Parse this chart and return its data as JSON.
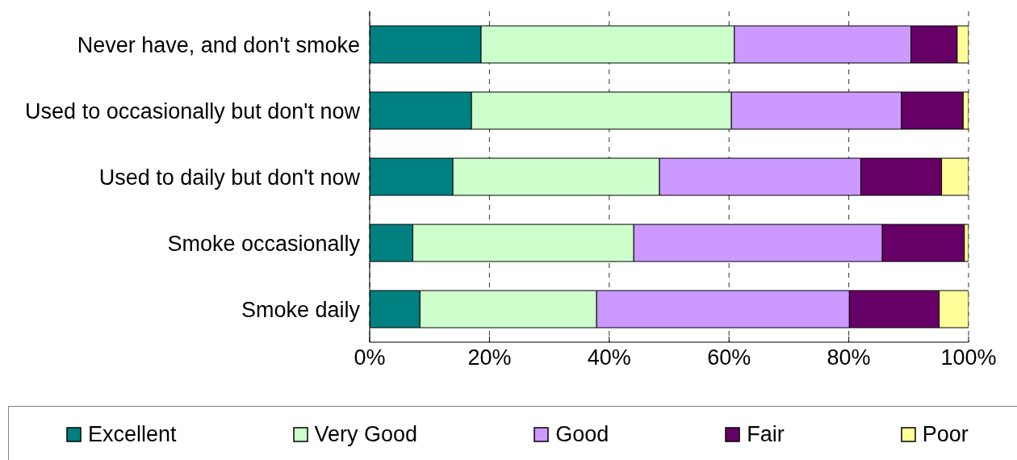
{
  "chart_data": {
    "type": "bar",
    "orientation": "horizontal",
    "stacked": true,
    "categories": [
      "Never have, and don't smoke",
      "Used to occasionally but don't now",
      "Used to daily but don't now",
      "Smoke occasionally",
      "Smoke daily"
    ],
    "series": [
      {
        "name": "Excellent",
        "color": "#008080",
        "values": [
          18.6,
          17.0,
          13.9,
          7.2,
          8.4
        ]
      },
      {
        "name": "Very Good",
        "color": "#ccffcc",
        "values": [
          42.3,
          43.4,
          34.5,
          36.9,
          29.5
        ]
      },
      {
        "name": "Good",
        "color": "#cc99ff",
        "values": [
          29.5,
          28.4,
          33.6,
          41.5,
          42.2
        ]
      },
      {
        "name": "Fair",
        "color": "#660066",
        "values": [
          7.7,
          10.3,
          13.5,
          13.7,
          15.0
        ]
      },
      {
        "name": "Poor",
        "color": "#ffff99",
        "values": [
          1.9,
          0.9,
          4.5,
          0.7,
          4.9
        ]
      }
    ],
    "xlim": [
      0,
      100
    ],
    "xticks": [
      {
        "value": 0,
        "label": "0%"
      },
      {
        "value": 20,
        "label": "20%"
      },
      {
        "value": 40,
        "label": "40%"
      },
      {
        "value": 60,
        "label": "60%"
      },
      {
        "value": 80,
        "label": "80%"
      },
      {
        "value": 100,
        "label": "100%"
      }
    ],
    "grid": "x",
    "legend": "bottom"
  }
}
